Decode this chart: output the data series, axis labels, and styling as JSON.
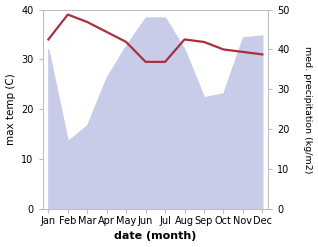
{
  "months": [
    "Jan",
    "Feb",
    "Mar",
    "Apr",
    "May",
    "Jun",
    "Jul",
    "Aug",
    "Sep",
    "Oct",
    "Nov",
    "Dec"
  ],
  "month_x": [
    0,
    1,
    2,
    3,
    4,
    5,
    6,
    7,
    8,
    9,
    10,
    11
  ],
  "temperature": [
    34.0,
    39.0,
    37.5,
    35.5,
    33.5,
    29.5,
    29.5,
    34.0,
    33.5,
    32.0,
    31.5,
    31.0
  ],
  "precipitation": [
    40.0,
    17.0,
    21.0,
    33.0,
    41.0,
    48.0,
    48.0,
    40.0,
    28.0,
    29.0,
    43.0,
    43.5
  ],
  "temp_color": "#aa3040",
  "precip_fill_color": "#c8cce8",
  "temp_ylim": [
    0,
    40
  ],
  "precip_ylim": [
    0,
    50
  ],
  "xlabel": "date (month)",
  "ylabel_left": "max temp (C)",
  "ylabel_right": "med. precipitation (kg/m2)",
  "background_color": "#ffffff",
  "grid_color": "#dddddd",
  "spine_color": "#bbbbbb",
  "tick_fontsize": 7,
  "xlabel_fontsize": 8,
  "ylabel_fontsize": 7.5,
  "ylabel_right_fontsize": 6.8
}
